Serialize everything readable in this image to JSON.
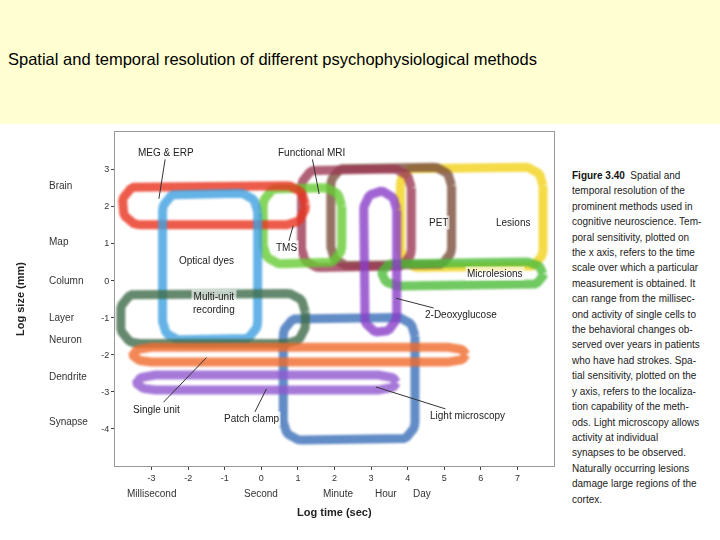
{
  "header": {
    "title": "Spatial and temporal resolution of different psychophysiological methods"
  },
  "chart_data": {
    "type": "region",
    "xlabel": "Log time (sec)",
    "ylabel": "Log size (mm)",
    "xlim": [
      -4,
      8
    ],
    "ylim": [
      -5,
      4
    ],
    "xticks": [
      -3,
      -2,
      -1,
      0,
      1,
      2,
      3,
      4,
      5,
      6,
      7
    ],
    "yticks": [
      -4,
      -3,
      -2,
      -1,
      0,
      1,
      2,
      3
    ],
    "grid": false,
    "x_scale_labels": [
      {
        "value": -3,
        "label": "Millisecond"
      },
      {
        "value": 0,
        "label": "Second"
      },
      {
        "value": 2.1,
        "label": "Minute"
      },
      {
        "value": 3.4,
        "label": "Hour"
      },
      {
        "value": 4.4,
        "label": "Day"
      }
    ],
    "y_scale_labels": [
      {
        "value": 2.55,
        "label": "Brain"
      },
      {
        "value": 1.05,
        "label": "Map"
      },
      {
        "value": 0,
        "label": "Column"
      },
      {
        "value": -1,
        "label": "Layer"
      },
      {
        "value": -1.6,
        "label": "Neuron"
      },
      {
        "value": -2.6,
        "label": "Dendrite"
      },
      {
        "value": -3.8,
        "label": "Synapse"
      }
    ],
    "regions": [
      {
        "name": "Light microscopy",
        "color": "#3b6fb8",
        "x": [
          0.6,
          4.2
        ],
        "y": [
          -4.3,
          -1.0
        ]
      },
      {
        "name": "Lesions",
        "color": "#f2d21a",
        "x": [
          3.8,
          7.7
        ],
        "y": [
          0.35,
          3.05
        ]
      },
      {
        "name": "PET",
        "color": "#7b4f3c",
        "x": [
          1.9,
          5.2
        ],
        "y": [
          0.4,
          3.05
        ]
      },
      {
        "name": "Functional MRI",
        "color": "#9c3a55",
        "x": [
          1.1,
          4.1
        ],
        "y": [
          0.35,
          3.0
        ]
      },
      {
        "name": "TMS",
        "color": "#66cc33",
        "x": [
          0.05,
          2.2
        ],
        "y": [
          0.45,
          2.5
        ]
      },
      {
        "name": "MEG & ERP",
        "color": "#e8321e",
        "x": [
          -3.8,
          1.2
        ],
        "y": [
          1.5,
          2.55
        ]
      },
      {
        "name": "Optical dyes",
        "color": "#3ea0e0",
        "x": [
          -2.7,
          -0.1
        ],
        "y": [
          -1.6,
          2.35
        ]
      },
      {
        "name": "Microlesions",
        "color": "#4cbb3a",
        "x": [
          3.3,
          7.7
        ],
        "y": [
          -0.15,
          0.5
        ]
      },
      {
        "name": "2-Deoxyglucose",
        "color": "#8a3fc8",
        "x": [
          2.8,
          3.7
        ],
        "y": [
          -1.4,
          2.4
        ]
      },
      {
        "name": "Multi-unit\nrecording",
        "color": "#3e6b4a",
        "x": [
          -3.85,
          1.2
        ],
        "y": [
          -1.7,
          -0.35
        ]
      },
      {
        "name": "Single unit",
        "color": "#f06a2c",
        "x": [
          -3.5,
          5.6
        ],
        "y": [
          -2.2,
          -1.8
        ]
      },
      {
        "name": "Patch clamp",
        "color": "#9057d0",
        "x": [
          -3.4,
          3.7
        ],
        "y": [
          -2.95,
          -2.55
        ]
      }
    ]
  },
  "caption": {
    "figure": "Figure 3.40",
    "lines": [
      "Spatial and",
      "temporal resolution of the",
      "prominent methods used in",
      "cognitive neuroscience. Tem-",
      "poral sensitivity, plotted on",
      "the x axis, refers to the time",
      "scale over which a particular",
      "measurement is obtained. It",
      "can range from the millisec-",
      "ond activity of single cells to",
      "the behavioral changes ob-",
      "served over years in patients",
      "who have had strokes. Spa-",
      "tial sensitivity, plotted on the",
      "y axis, refers to the localiza-",
      "tion capability of the meth-",
      "ods. Light microscopy allows",
      "activity at individual",
      "synapses to be observed.",
      "Naturally occurring lesions",
      "damage large regions of the",
      "cortex."
    ]
  }
}
